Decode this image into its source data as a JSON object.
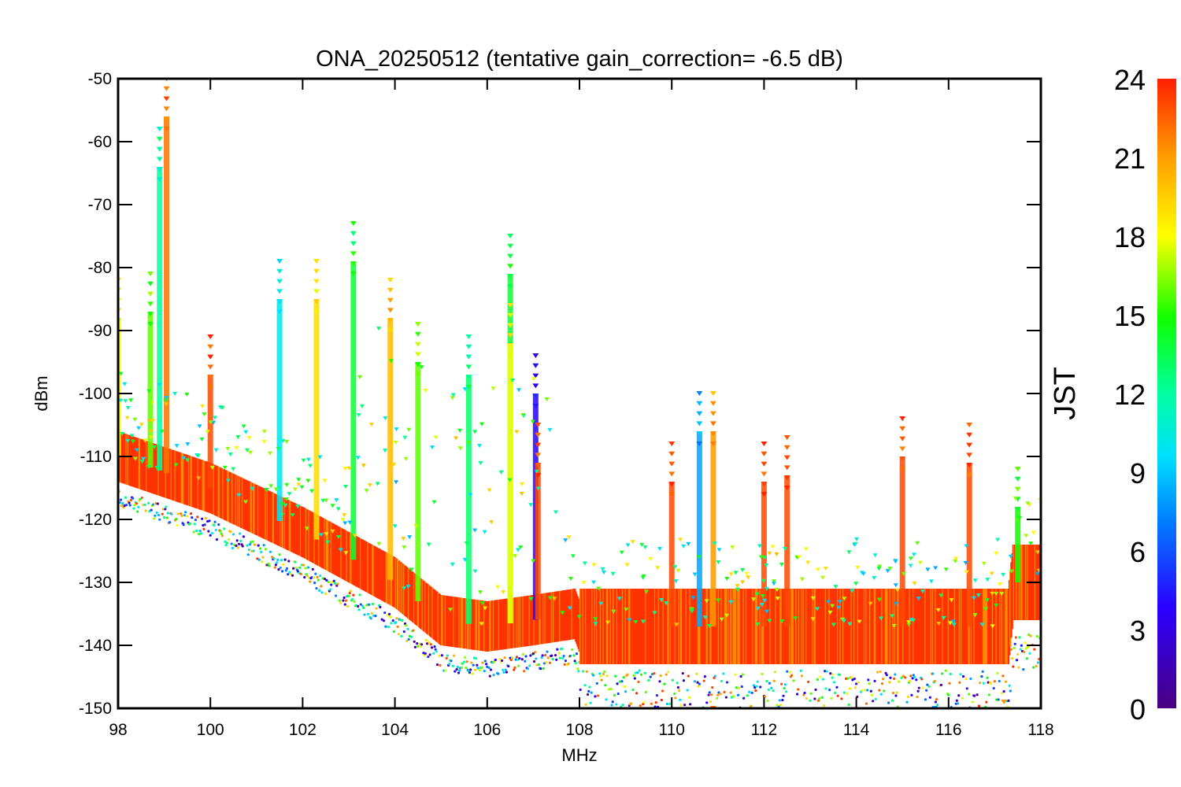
{
  "chart_data": {
    "type": "scatter",
    "title": "ONA_20250512 (tentative gain_correction= -6.5 dB)",
    "xlabel": "MHz",
    "ylabel": "dBm",
    "xlim": [
      98,
      118
    ],
    "ylim": [
      -150,
      -50
    ],
    "x_ticks": [
      "98",
      "100",
      "102",
      "104",
      "106",
      "108",
      "110",
      "112",
      "114",
      "116",
      "118"
    ],
    "y_ticks": [
      "-50",
      "-60",
      "-70",
      "-80",
      "-90",
      "-100",
      "-110",
      "-120",
      "-130",
      "-140",
      "-150"
    ],
    "colorbar": {
      "label": "JST",
      "range": [
        0,
        24
      ],
      "ticks": [
        "0",
        "3",
        "6",
        "9",
        "12",
        "15",
        "18",
        "21",
        "24"
      ],
      "colormap": "rainbow"
    },
    "noise_floor": [
      {
        "x": 98,
        "y": -110
      },
      {
        "x": 100,
        "y": -115
      },
      {
        "x": 102,
        "y": -122
      },
      {
        "x": 104,
        "y": -130
      },
      {
        "x": 105,
        "y": -136
      },
      {
        "x": 106,
        "y": -137
      },
      {
        "x": 107,
        "y": -136
      },
      {
        "x": 107.9,
        "y": -135
      },
      {
        "x": 108,
        "y": -137
      },
      {
        "x": 112,
        "y": -137
      },
      {
        "x": 116,
        "y": -137
      },
      {
        "x": 117.3,
        "y": -137
      },
      {
        "x": 117.4,
        "y": -130
      },
      {
        "x": 118,
        "y": -130
      }
    ],
    "peaks": [
      {
        "x": 98.0,
        "y": -90,
        "jst": 18
      },
      {
        "x": 98.7,
        "y": -89,
        "jst": 16
      },
      {
        "x": 98.9,
        "y": -66,
        "jst": 12
      },
      {
        "x": 99.05,
        "y": -58,
        "jst": 22
      },
      {
        "x": 100.0,
        "y": -99,
        "jst": 23
      },
      {
        "x": 101.5,
        "y": -87,
        "jst": 10
      },
      {
        "x": 102.3,
        "y": -87,
        "jst": 19
      },
      {
        "x": 103.1,
        "y": -81,
        "jst": 14
      },
      {
        "x": 103.9,
        "y": -90,
        "jst": 20
      },
      {
        "x": 104.5,
        "y": -97,
        "jst": 16
      },
      {
        "x": 105.6,
        "y": -99,
        "jst": 13
      },
      {
        "x": 106.5,
        "y": -83,
        "jst": 14
      },
      {
        "x": 106.5,
        "y": -94,
        "jst": 18
      },
      {
        "x": 107.05,
        "y": -102,
        "jst": 4
      },
      {
        "x": 107.1,
        "y": -113,
        "jst": 23
      },
      {
        "x": 110.0,
        "y": -116,
        "jst": 23
      },
      {
        "x": 110.6,
        "y": -108,
        "jst": 8
      },
      {
        "x": 110.9,
        "y": -108,
        "jst": 21
      },
      {
        "x": 112.0,
        "y": -116,
        "jst": 23
      },
      {
        "x": 112.5,
        "y": -115,
        "jst": 23
      },
      {
        "x": 115.0,
        "y": -112,
        "jst": 23
      },
      {
        "x": 116.45,
        "y": -113,
        "jst": 23
      },
      {
        "x": 117.5,
        "y": -120,
        "jst": 15
      }
    ],
    "minimum_outliers": [
      {
        "x": 110.9,
        "y": -150,
        "jst": 22
      },
      {
        "x": 115.7,
        "y": -150,
        "jst": 8
      },
      {
        "x": 117.2,
        "y": -149,
        "jst": 21
      }
    ]
  }
}
